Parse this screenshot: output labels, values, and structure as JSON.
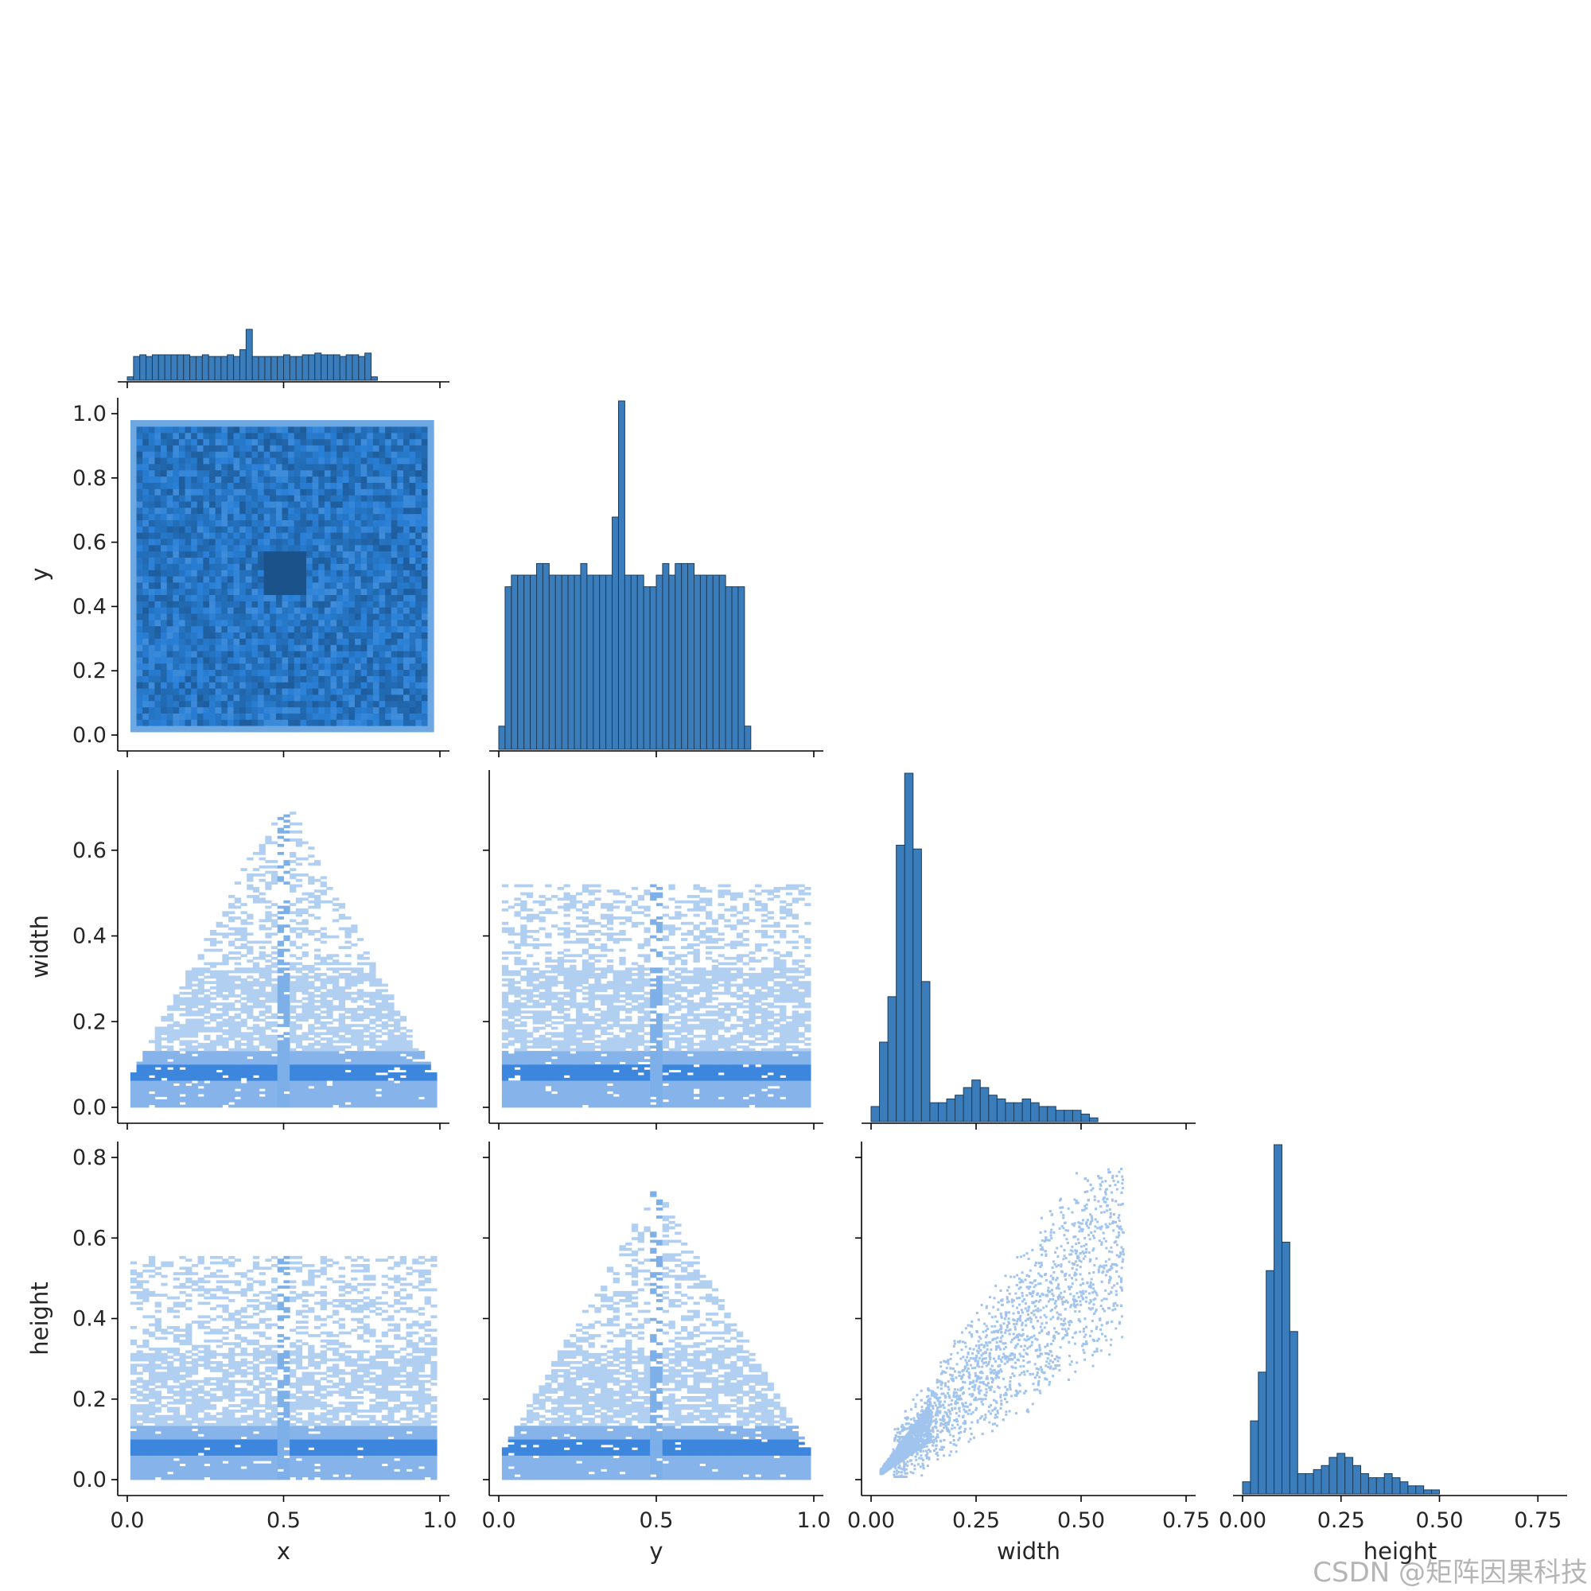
{
  "watermark": "CSDN @矩阵因果科技",
  "chart_data": {
    "type": "pairplot",
    "variables": [
      "x",
      "y",
      "width",
      "height"
    ],
    "layout": "corner (lower triangle)",
    "diagonal": "histogram",
    "off_diagonal": "2d histogram",
    "color": "#1f77b4",
    "axes": {
      "x": {
        "range": [
          0,
          1
        ],
        "ticks": [
          "0.0",
          "0.5",
          "1.0"
        ]
      },
      "y": {
        "range": [
          0,
          1
        ],
        "ticks": [
          "0.0",
          "0.2",
          "0.4",
          "0.6",
          "0.8",
          "1.0"
        ]
      },
      "width": {
        "range": [
          0,
          0.75
        ],
        "ticks_row": [
          "0.0",
          "0.2",
          "0.4",
          "0.6"
        ],
        "ticks_col": [
          "0.00",
          "0.25",
          "0.50",
          "0.75"
        ]
      },
      "height": {
        "range": [
          0,
          0.8
        ],
        "ticks_row": [
          "0.0",
          "0.2",
          "0.4",
          "0.6",
          "0.8"
        ],
        "ticks_col": [
          "0.00",
          "0.25",
          "0.50",
          "0.75"
        ]
      }
    },
    "hist_x": {
      "bin_width": 0.02,
      "counts": [
        2,
        14,
        15,
        14,
        15,
        15,
        15,
        15,
        15,
        15,
        14,
        14,
        15,
        14,
        14,
        14,
        15,
        14,
        18,
        30,
        14,
        14,
        14,
        14,
        14,
        15,
        14,
        14,
        15,
        15,
        16,
        15,
        15,
        15,
        14,
        15,
        15,
        14,
        16,
        2
      ]
    },
    "hist_y": {
      "bin_width": 0.02,
      "counts": [
        2,
        14,
        15,
        15,
        15,
        15,
        16,
        16,
        15,
        15,
        15,
        15,
        15,
        16,
        15,
        15,
        15,
        15,
        20,
        30,
        15,
        15,
        15,
        14,
        14,
        15,
        16,
        15,
        16,
        16,
        16,
        15,
        15,
        15,
        15,
        15,
        14,
        14,
        14,
        2
      ]
    },
    "hist_width": {
      "bin_edges_start": 0.0,
      "bin_width": 0.02,
      "counts": [
        4,
        21,
        33,
        73,
        92,
        72,
        37,
        5,
        5,
        6,
        7,
        9,
        11,
        9,
        7,
        6,
        5,
        5,
        6,
        5,
        4,
        4,
        3,
        3,
        3,
        2,
        1,
        0,
        0,
        0
      ]
    },
    "hist_height": {
      "bin_edges_start": 0.0,
      "bin_width": 0.02,
      "counts": [
        3,
        18,
        30,
        55,
        86,
        62,
        40,
        5,
        5,
        6,
        7,
        9,
        10,
        9,
        7,
        5,
        4,
        4,
        5,
        4,
        3,
        2,
        2,
        1,
        1,
        0
      ]
    }
  }
}
